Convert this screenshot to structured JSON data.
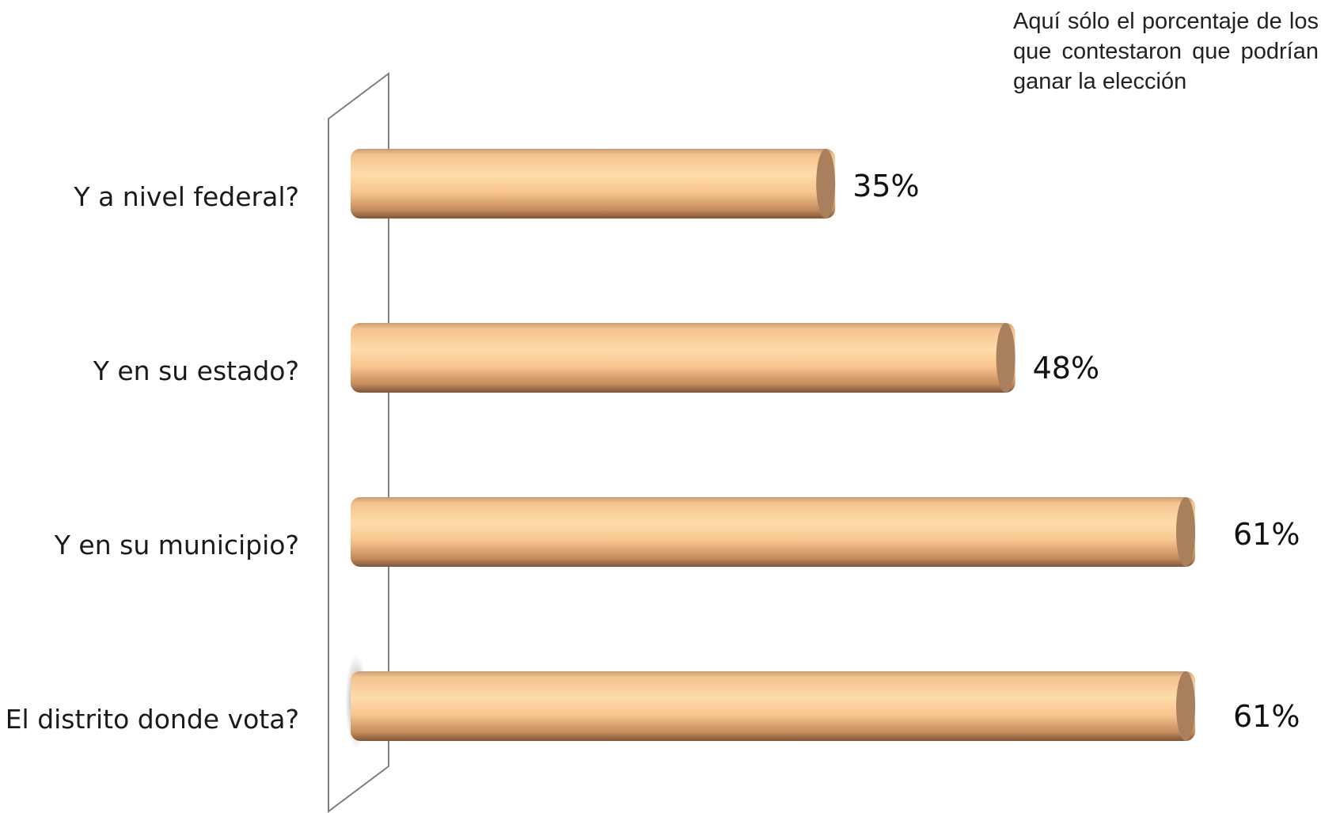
{
  "note": "Aquí sólo el porcentaje de los que contestaron que podrían ganar la elección",
  "colors": {
    "bar_light": "#ffd9a6",
    "bar_mid": "#f0b47c",
    "bar_dark": "#9a7050",
    "bar_cap": "#a8805e",
    "frame": "#7f7f7f"
  },
  "chart_data": {
    "type": "bar",
    "orientation": "horizontal",
    "categories": [
      "Y a nivel federal?",
      "Y en su estado?",
      "Y en su municipio?",
      "El distrito donde vota?"
    ],
    "values": [
      35,
      48,
      61,
      61
    ],
    "value_labels": [
      "35%",
      "48%",
      "61%",
      "61%"
    ],
    "unit": "%",
    "xlim": [
      0,
      61
    ],
    "grid": false,
    "legend": "none"
  }
}
